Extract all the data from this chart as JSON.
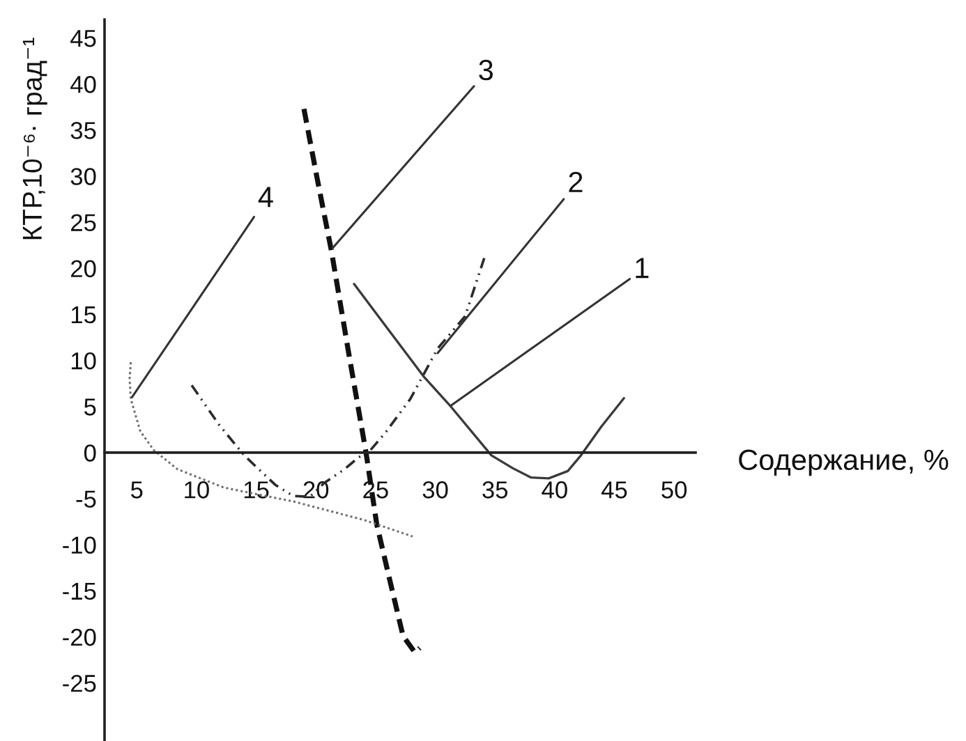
{
  "chart_data": {
    "type": "line",
    "xlabel": "Содержание, %",
    "ylabel": "КТР,10⁻⁶· град⁻¹",
    "xlim": [
      2.3,
      51.8
    ],
    "xticks": [
      5,
      10,
      15,
      20,
      25,
      30,
      35,
      40,
      45,
      50
    ],
    "ylim": [
      -31.3,
      47
    ],
    "yticks": [
      -25,
      -20,
      -15,
      -10,
      -5,
      0,
      5,
      10,
      15,
      20,
      25,
      30,
      35,
      40,
      45
    ],
    "series": [
      {
        "color": "#3a3a3a",
        "line_style": "solid",
        "x": [
          23.2,
          26.1,
          29.0,
          31.3,
          34.7,
          36.5,
          38.0,
          39.5,
          41.1,
          42.2,
          43.9,
          45.8
        ],
        "values": [
          18.3,
          13.3,
          8.3,
          5.0,
          -0.3,
          -1.7,
          -2.7,
          -2.8,
          -2.0,
          -0.3,
          2.8,
          5.9
        ]
      },
      {
        "color": "#2b2b2b",
        "line_style": "dashdot",
        "x": [
          9.6,
          11.9,
          14.0,
          14.8,
          16.6,
          18.1,
          19.5,
          20.7,
          22.4,
          23.6,
          24.4,
          25.9,
          27.9,
          30.2,
          32.5,
          34.1
        ],
        "values": [
          7.3,
          3.0,
          -0.3,
          -1.3,
          -3.5,
          -4.7,
          -4.8,
          -3.3,
          -1.8,
          -0.5,
          0,
          2.3,
          5.8,
          11.3,
          14.8,
          21.1
        ]
      },
      {
        "color": "#111111",
        "line_style": "dashed",
        "x": [
          19.0,
          20.1,
          21.3,
          22.8,
          24.2,
          25.1,
          26.2,
          27.3,
          28.3,
          28.7
        ],
        "values": [
          37.3,
          29.8,
          21.9,
          10.4,
          0,
          -7.8,
          -13.9,
          -19.9,
          -21.7,
          -21.2
        ]
      },
      {
        "color": "#6e6e6e",
        "line_style": "dotted",
        "x": [
          4.5,
          4.4,
          4.5,
          5.3,
          6.4,
          8.4,
          12.3,
          18.1,
          24.0,
          28.1
        ],
        "values": [
          9.8,
          8.0,
          5.8,
          2.3,
          0.3,
          -1.8,
          -3.8,
          -5.3,
          -7.3,
          -9.1
        ]
      }
    ],
    "annotations": [
      {
        "text": "1",
        "x": 31.3,
        "y": 5.1
      },
      {
        "text": "2",
        "x": 30.2,
        "y": 10.8
      },
      {
        "text": "3",
        "x": 21.4,
        "y": 22.2
      },
      {
        "text": "4",
        "x": 4.6,
        "y": 6.0
      }
    ]
  }
}
